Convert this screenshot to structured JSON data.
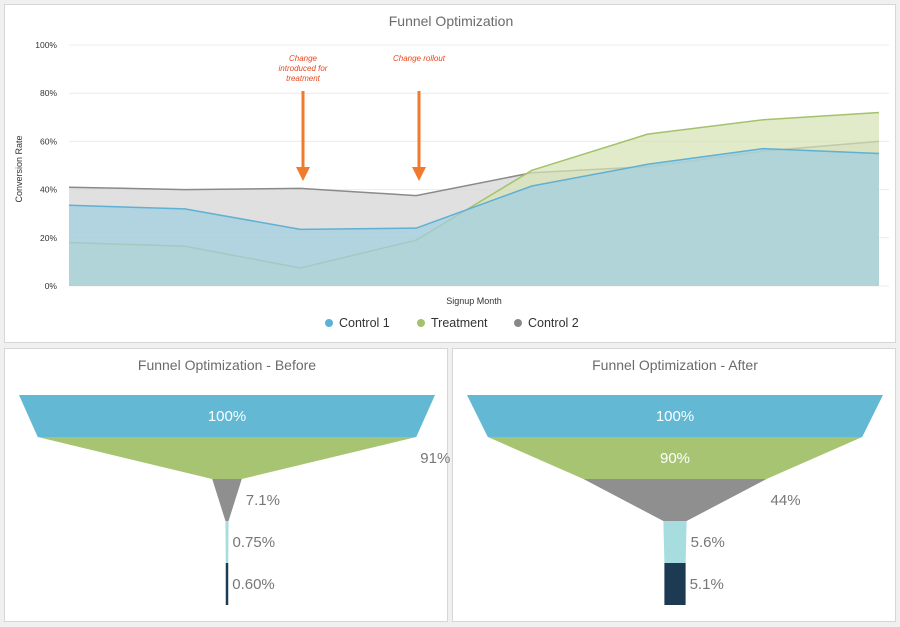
{
  "chart_data": [
    {
      "type": "area",
      "title": "Funnel Optimization",
      "xlabel": "Signup Month",
      "ylabel": "Conversion Rate",
      "ylim": [
        0,
        100
      ],
      "yticks": [
        "0%",
        "20%",
        "40%",
        "60%",
        "80%",
        "100%"
      ],
      "x": [
        0,
        1,
        2,
        3,
        4,
        5,
        6,
        7
      ],
      "series": [
        {
          "name": "Control 2",
          "color": "#8a8a8a",
          "fill": "#d4d4d4",
          "values": [
            41,
            40,
            40.5,
            37.5,
            47,
            49.5,
            56,
            60
          ]
        },
        {
          "name": "Treatment",
          "color": "#a3c26b",
          "fill": "#d6e3b6",
          "values": [
            18,
            16.5,
            7.5,
            19,
            48,
            63,
            69,
            72
          ]
        },
        {
          "name": "Control 1",
          "color": "#5fb0d2",
          "fill": "#9fcfe0",
          "values": [
            33.5,
            32,
            23.5,
            24,
            41.5,
            50.5,
            57,
            55
          ]
        }
      ],
      "legend": [
        {
          "name": "Control 1",
          "color": "#5ab2d4"
        },
        {
          "name": "Treatment",
          "color": "#a3c26b"
        },
        {
          "name": "Control 2",
          "color": "#888888"
        }
      ],
      "annotations": [
        {
          "lines": [
            "Change",
            "introduced for",
            "treatment"
          ],
          "x": 2
        },
        {
          "lines": [
            "Change rollout"
          ],
          "x": 3
        }
      ],
      "arrow_color": "#f07a2e"
    },
    {
      "type": "funnel",
      "title": "Funnel Optimization - Before",
      "stages": [
        {
          "value": 100,
          "label": "100%",
          "color": "#63b9d4"
        },
        {
          "value": 91,
          "label": "91%",
          "color": "#a6c472"
        },
        {
          "value": 7.1,
          "label": "7.1%",
          "color": "#8f8f8f"
        },
        {
          "value": 0.75,
          "label": "0.75%",
          "color": "#a8dde0"
        },
        {
          "value": 0.6,
          "label": "0.60%",
          "color": "#1d3a53"
        }
      ]
    },
    {
      "type": "funnel",
      "title": "Funnel Optimization - After",
      "stages": [
        {
          "value": 100,
          "label": "100%",
          "color": "#63b9d4"
        },
        {
          "value": 90,
          "label": "90%",
          "color": "#a6c472"
        },
        {
          "value": 44,
          "label": "44%",
          "color": "#8f8f8f"
        },
        {
          "value": 5.6,
          "label": "5.6%",
          "color": "#a8dde0"
        },
        {
          "value": 5.1,
          "label": "5.1%",
          "color": "#1d3a53"
        }
      ]
    }
  ]
}
